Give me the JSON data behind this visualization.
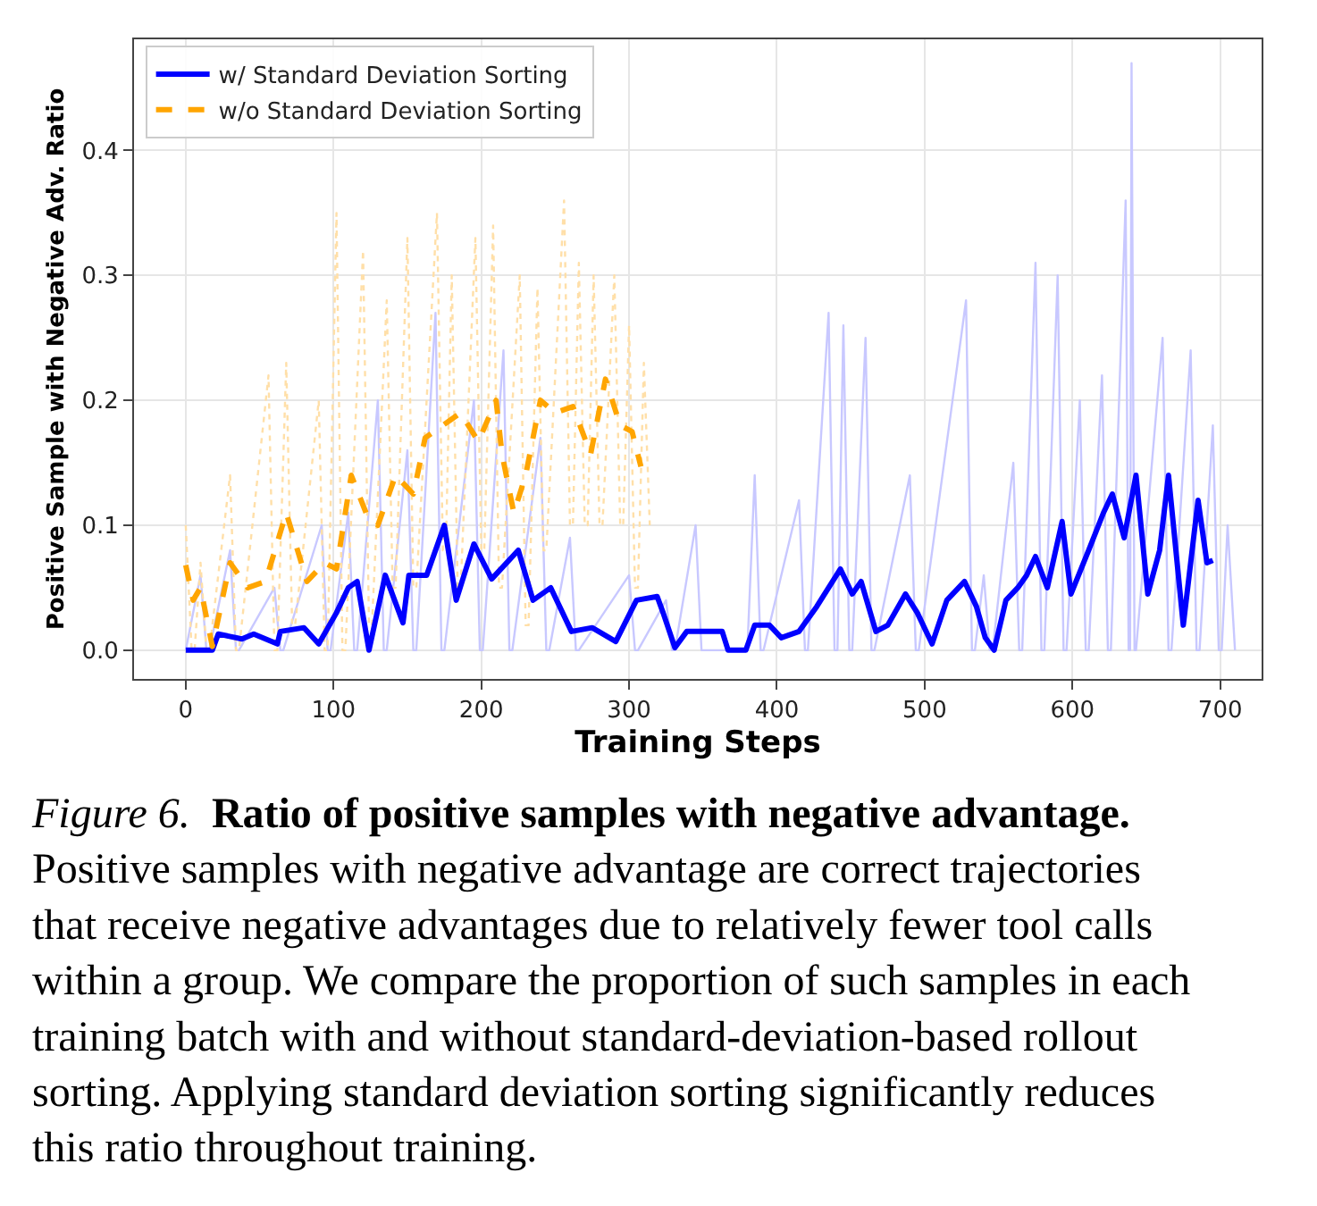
{
  "chart_data": {
    "type": "line",
    "xlabel": "Training Steps",
    "ylabel": "Positive Sample with Negative Adv. Ratio",
    "xlim": [
      -35,
      728
    ],
    "ylim": [
      -0.023,
      0.489
    ],
    "xticks": [
      0,
      100,
      200,
      300,
      400,
      500,
      600,
      700
    ],
    "yticks": [
      {
        "value": 0,
        "label": "0.0"
      },
      {
        "value": 0.1,
        "label": "0.1"
      },
      {
        "value": 0.2,
        "label": "0.2"
      },
      {
        "value": 0.3,
        "label": "0.3"
      },
      {
        "value": 0.4,
        "label": "0.4"
      }
    ],
    "grid": true,
    "legend": "top left",
    "marker": "none",
    "series": [
      {
        "color": "#c8c8ff",
        "line_style": "solid",
        "x": [
          0,
          10,
          14,
          16,
          30,
          34,
          36,
          60,
          64,
          66,
          92,
          96,
          98,
          110,
          114,
          116,
          130,
          134,
          136,
          150,
          154,
          156,
          169,
          173,
          175,
          195,
          199,
          201,
          215,
          219,
          221,
          240,
          244,
          246,
          260,
          264,
          266,
          300,
          304,
          306,
          325,
          329,
          331,
          345,
          349,
          380,
          385,
          389,
          391,
          415,
          419,
          421,
          435,
          439,
          441,
          445,
          449,
          451,
          460,
          464,
          466,
          490,
          494,
          496,
          528,
          532,
          534,
          540,
          544,
          546,
          560,
          564,
          566,
          575,
          579,
          581,
          590,
          594,
          596,
          605,
          609,
          611,
          620,
          624,
          626,
          636,
          638,
          639,
          640,
          642,
          643,
          661,
          665,
          667,
          680,
          684,
          686,
          695,
          699,
          701,
          705,
          710
        ],
        "values": [
          0,
          0.06,
          0,
          0,
          0.08,
          0,
          0,
          0.05,
          0,
          0,
          0.1,
          0,
          0,
          0.11,
          0,
          0,
          0.2,
          0,
          0,
          0.16,
          0,
          0,
          0.27,
          0,
          0,
          0.2,
          0,
          0,
          0.24,
          0,
          0,
          0.17,
          0,
          0,
          0.09,
          0,
          0,
          0.06,
          0,
          0,
          0.04,
          0,
          0,
          0.1,
          0,
          0,
          0.14,
          0,
          0,
          0.12,
          0,
          0,
          0.27,
          0,
          0,
          0.26,
          0,
          0,
          0.25,
          0,
          0,
          0.14,
          0,
          0,
          0.28,
          0,
          0,
          0.06,
          0,
          0,
          0.15,
          0,
          0,
          0.31,
          0,
          0,
          0.3,
          0,
          0,
          0.2,
          0,
          0,
          0.22,
          0,
          0,
          0.36,
          0,
          0,
          0.47,
          0,
          0,
          0.25,
          0,
          0,
          0.24,
          0,
          0,
          0.18,
          0,
          0,
          0.1,
          0
        ]
      },
      {
        "color": "#ffdfa8",
        "line_style": "dotted",
        "x": [
          0,
          4,
          6,
          10,
          14,
          16,
          30,
          34,
          36,
          56,
          60,
          62,
          68,
          72,
          74,
          90,
          94,
          96,
          102,
          106,
          108,
          120,
          124,
          126,
          136,
          140,
          142,
          150,
          154,
          156,
          170,
          174,
          176,
          180,
          184,
          186,
          196,
          200,
          202,
          208,
          212,
          214,
          226,
          230,
          232,
          238,
          242,
          244,
          256,
          260,
          262,
          266,
          270,
          272,
          276,
          280,
          282,
          290,
          294,
          296,
          300,
          304,
          306,
          310,
          314
        ],
        "values": [
          0.1,
          0,
          0,
          0.07,
          0,
          0,
          0.14,
          0,
          0,
          0.22,
          0,
          0,
          0.23,
          0.02,
          0.02,
          0.2,
          0,
          0,
          0.35,
          0,
          0,
          0.32,
          0.02,
          0.02,
          0.28,
          0.05,
          0.05,
          0.33,
          0.05,
          0.05,
          0.35,
          0.08,
          0.08,
          0.3,
          0.05,
          0.05,
          0.33,
          0.08,
          0.08,
          0.34,
          0.05,
          0.05,
          0.3,
          0.02,
          0.02,
          0.29,
          0.08,
          0.08,
          0.36,
          0.1,
          0.1,
          0.31,
          0.1,
          0.1,
          0.3,
          0.1,
          0.1,
          0.3,
          0.1,
          0.1,
          0.26,
          0.05,
          0.05,
          0.23,
          0.1
        ]
      },
      {
        "name": "w/ Standard Deviation Sorting",
        "color": "#0000ff",
        "line_style": "solid",
        "x": [
          0,
          18,
          22,
          38,
          46,
          62,
          64,
          80,
          90,
          102,
          110,
          116,
          124,
          135,
          147,
          151,
          163,
          175,
          183,
          195,
          207,
          225,
          235,
          247,
          261,
          275,
          291,
          305,
          319,
          323,
          331,
          339,
          363,
          367,
          379,
          385,
          395,
          403,
          415,
          427,
          443,
          451,
          457,
          467,
          475,
          487,
          495,
          505,
          515,
          527,
          535,
          541,
          547,
          555,
          563,
          569,
          575,
          583,
          593,
          599,
          611,
          621,
          627,
          635,
          643,
          651,
          659,
          665,
          675,
          685,
          691,
          695
        ],
        "values": [
          0,
          0,
          0.013,
          0.009,
          0.013,
          0.005,
          0.015,
          0.018,
          0.005,
          0.03,
          0.05,
          0.055,
          0,
          0.06,
          0.022,
          0.06,
          0.06,
          0.1,
          0.04,
          0.085,
          0.057,
          0.08,
          0.04,
          0.05,
          0.015,
          0.018,
          0.007,
          0.04,
          0.043,
          0.03,
          0.002,
          0.015,
          0.015,
          0,
          0,
          0.02,
          0.02,
          0.01,
          0.015,
          0.035,
          0.065,
          0.045,
          0.055,
          0.015,
          0.02,
          0.045,
          0.03,
          0.005,
          0.04,
          0.055,
          0.035,
          0.01,
          0,
          0.04,
          0.05,
          0.06,
          0.075,
          0.05,
          0.103,
          0.045,
          0.08,
          0.11,
          0.125,
          0.09,
          0.14,
          0.045,
          0.08,
          0.14,
          0.02,
          0.12,
          0.07,
          0.072
        ]
      },
      {
        "name": "w/o Standard Deviation Sorting",
        "color": "#ffa500",
        "line_style": "dashed",
        "x": [
          0,
          5,
          10,
          18,
          30,
          42,
          54,
          68,
          82,
          94,
          102,
          112,
          122,
          130,
          142,
          154,
          162,
          174,
          186,
          198,
          210,
          214,
          222,
          230,
          240,
          250,
          262,
          274,
          284,
          294,
          302,
          308
        ],
        "values": [
          0.068,
          0.04,
          0.05,
          0.003,
          0.07,
          0.05,
          0.055,
          0.11,
          0.055,
          0.07,
          0.065,
          0.14,
          0.11,
          0.1,
          0.14,
          0.125,
          0.17,
          0.18,
          0.19,
          0.167,
          0.2,
          0.157,
          0.11,
          0.14,
          0.2,
          0.19,
          0.195,
          0.157,
          0.217,
          0.18,
          0.175,
          0.147
        ]
      }
    ],
    "annotations": [
      "Figure 6.",
      "Ratio of positive samples with negative advantage.",
      "Positive samples with negative advantage are correct trajectories that receive negative advantages due to relatively fewer tool calls within a group. We compare the proportion of such samples in each training batch with and without standard-deviation-based rollout sorting. Applying standard deviation sorting significantly reduces this ratio throughout training."
    ]
  }
}
